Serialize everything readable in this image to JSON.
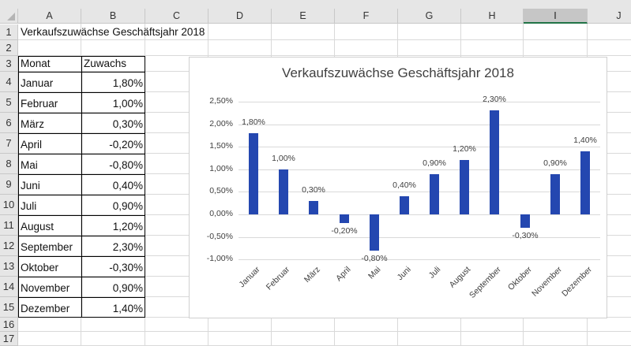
{
  "sheet": {
    "columns": [
      "A",
      "B",
      "C",
      "D",
      "E",
      "F",
      "G",
      "H",
      "I",
      "J"
    ],
    "selected_column": "I",
    "rows": [
      "1",
      "2",
      "3",
      "4",
      "5",
      "6",
      "7",
      "8",
      "9",
      "10",
      "11",
      "12",
      "13",
      "14",
      "15",
      "16",
      "17"
    ],
    "title_cell": "Verkaufszuwächse Geschäftsjahr 2018",
    "table": {
      "headers": [
        "Monat",
        "Zuwachs"
      ],
      "rows": [
        [
          "Januar",
          "1,80%"
        ],
        [
          "Februar",
          "1,00%"
        ],
        [
          "März",
          "0,30%"
        ],
        [
          "April",
          "-0,20%"
        ],
        [
          "Mai",
          "-0,80%"
        ],
        [
          "Juni",
          "0,40%"
        ],
        [
          "Juli",
          "0,90%"
        ],
        [
          "August",
          "1,20%"
        ],
        [
          "September",
          "2,30%"
        ],
        [
          "Oktober",
          "-0,30%"
        ],
        [
          "November",
          "0,90%"
        ],
        [
          "Dezember",
          "1,40%"
        ]
      ]
    }
  },
  "colors": {
    "bar": "#2447b0",
    "selected_header_underline": "#217346"
  },
  "chart_data": {
    "type": "bar",
    "title": "Verkaufszuwächse Geschäftsjahr 2018",
    "xlabel": "",
    "ylabel": "",
    "categories": [
      "Januar",
      "Februar",
      "März",
      "April",
      "Mai",
      "Juni",
      "Juli",
      "August",
      "September",
      "Oktober",
      "November",
      "Dezember"
    ],
    "values": [
      1.8,
      1.0,
      0.3,
      -0.2,
      -0.8,
      0.4,
      0.9,
      1.2,
      2.3,
      -0.3,
      0.9,
      1.4
    ],
    "value_labels": [
      "1,80%",
      "1,00%",
      "0,30%",
      "-0,20%",
      "-0,80%",
      "0,40%",
      "0,90%",
      "1,20%",
      "2,30%",
      "-0,30%",
      "0,90%",
      "1,40%"
    ],
    "ylim": [
      -1.0,
      2.5
    ],
    "yticks": [
      2.5,
      2.0,
      1.5,
      1.0,
      0.5,
      0.0,
      -0.5,
      -1.0
    ],
    "ytick_labels": [
      "2,50%",
      "2,00%",
      "1,50%",
      "1,00%",
      "0,50%",
      "0,00%",
      "-0,50%",
      "-1,00%"
    ],
    "grid": true,
    "legend": "none",
    "xtick_rotation": -45
  }
}
